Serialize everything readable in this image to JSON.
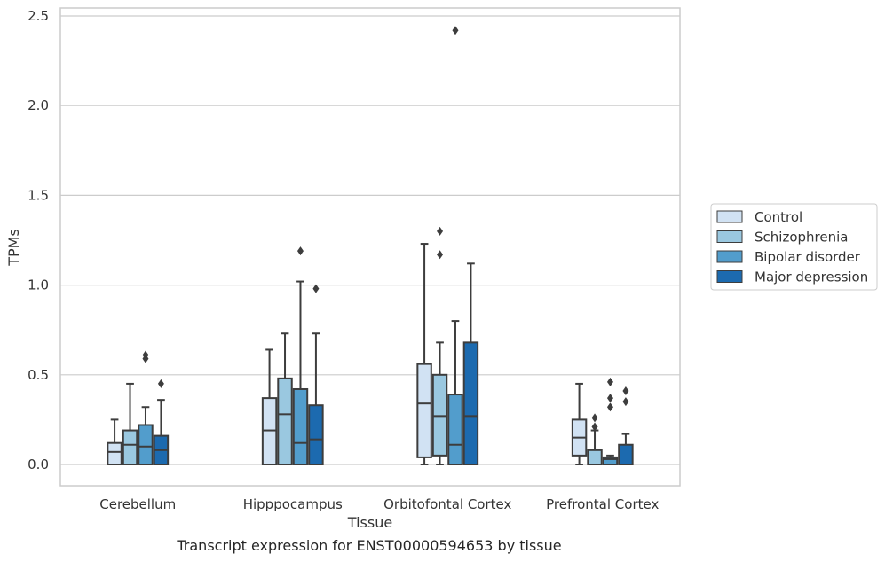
{
  "chart_data": {
    "type": "box",
    "title": "",
    "xlabel": "Tissue",
    "ylabel": "TPMs",
    "caption": "Transcript expression for ENST00000594653 by tissue",
    "ylim": [
      -0.12,
      2.55
    ],
    "yticks": [
      "0.0",
      "0.5",
      "1.0",
      "1.5",
      "2.0",
      "2.5"
    ],
    "ytick_values": [
      0,
      0.5,
      1.0,
      1.5,
      2.0,
      2.5
    ],
    "grid": true,
    "legend_position": "right",
    "categories": [
      "Cerebellum",
      "Hipppocampus",
      "Orbitofontal Cortex",
      "Prefrontal Cortex"
    ],
    "series": [
      {
        "name": "Control",
        "color": "#d1e2f3",
        "boxes": [
          {
            "q1": 0.0,
            "median": 0.07,
            "q3": 0.12,
            "whisker_low": 0.0,
            "whisker_high": 0.25,
            "outliers": []
          },
          {
            "q1": 0.0,
            "median": 0.19,
            "q3": 0.37,
            "whisker_low": 0.0,
            "whisker_high": 0.64,
            "outliers": []
          },
          {
            "q1": 0.04,
            "median": 0.34,
            "q3": 0.56,
            "whisker_low": 0.0,
            "whisker_high": 1.23,
            "outliers": []
          },
          {
            "q1": 0.05,
            "median": 0.15,
            "q3": 0.25,
            "whisker_low": 0.0,
            "whisker_high": 0.45,
            "outliers": []
          }
        ]
      },
      {
        "name": "Schizophrenia",
        "color": "#9ac8e0",
        "boxes": [
          {
            "q1": 0.0,
            "median": 0.11,
            "q3": 0.19,
            "whisker_low": 0.0,
            "whisker_high": 0.45,
            "outliers": []
          },
          {
            "q1": 0.0,
            "median": 0.28,
            "q3": 0.48,
            "whisker_low": 0.0,
            "whisker_high": 0.73,
            "outliers": []
          },
          {
            "q1": 0.05,
            "median": 0.27,
            "q3": 0.5,
            "whisker_low": 0.0,
            "whisker_high": 0.68,
            "outliers": [
              1.17,
              1.3
            ]
          },
          {
            "q1": 0.0,
            "median": 0.0,
            "q3": 0.08,
            "whisker_low": 0.0,
            "whisker_high": 0.19,
            "outliers": [
              0.21,
              0.26
            ]
          }
        ]
      },
      {
        "name": "Bipolar disorder",
        "color": "#529dcc",
        "boxes": [
          {
            "q1": 0.0,
            "median": 0.1,
            "q3": 0.22,
            "whisker_low": 0.0,
            "whisker_high": 0.32,
            "outliers": [
              0.59,
              0.61
            ]
          },
          {
            "q1": 0.0,
            "median": 0.12,
            "q3": 0.42,
            "whisker_low": 0.0,
            "whisker_high": 1.02,
            "outliers": [
              1.19
            ]
          },
          {
            "q1": 0.0,
            "median": 0.11,
            "q3": 0.39,
            "whisker_low": 0.0,
            "whisker_high": 0.8,
            "outliers": [
              2.42
            ]
          },
          {
            "q1": 0.0,
            "median": 0.03,
            "q3": 0.04,
            "whisker_low": 0.0,
            "whisker_high": 0.05,
            "outliers": [
              0.32,
              0.37,
              0.46
            ]
          }
        ]
      },
      {
        "name": "Major depression",
        "color": "#1c6aaf",
        "boxes": [
          {
            "q1": 0.0,
            "median": 0.08,
            "q3": 0.16,
            "whisker_low": 0.0,
            "whisker_high": 0.36,
            "outliers": [
              0.45
            ]
          },
          {
            "q1": 0.0,
            "median": 0.14,
            "q3": 0.33,
            "whisker_low": 0.0,
            "whisker_high": 0.73,
            "outliers": [
              0.98
            ]
          },
          {
            "q1": 0.0,
            "median": 0.27,
            "q3": 0.68,
            "whisker_low": 0.0,
            "whisker_high": 1.12,
            "outliers": []
          },
          {
            "q1": 0.0,
            "median": 0.0,
            "q3": 0.11,
            "whisker_low": 0.0,
            "whisker_high": 0.17,
            "outliers": [
              0.35,
              0.41
            ]
          }
        ]
      }
    ]
  }
}
